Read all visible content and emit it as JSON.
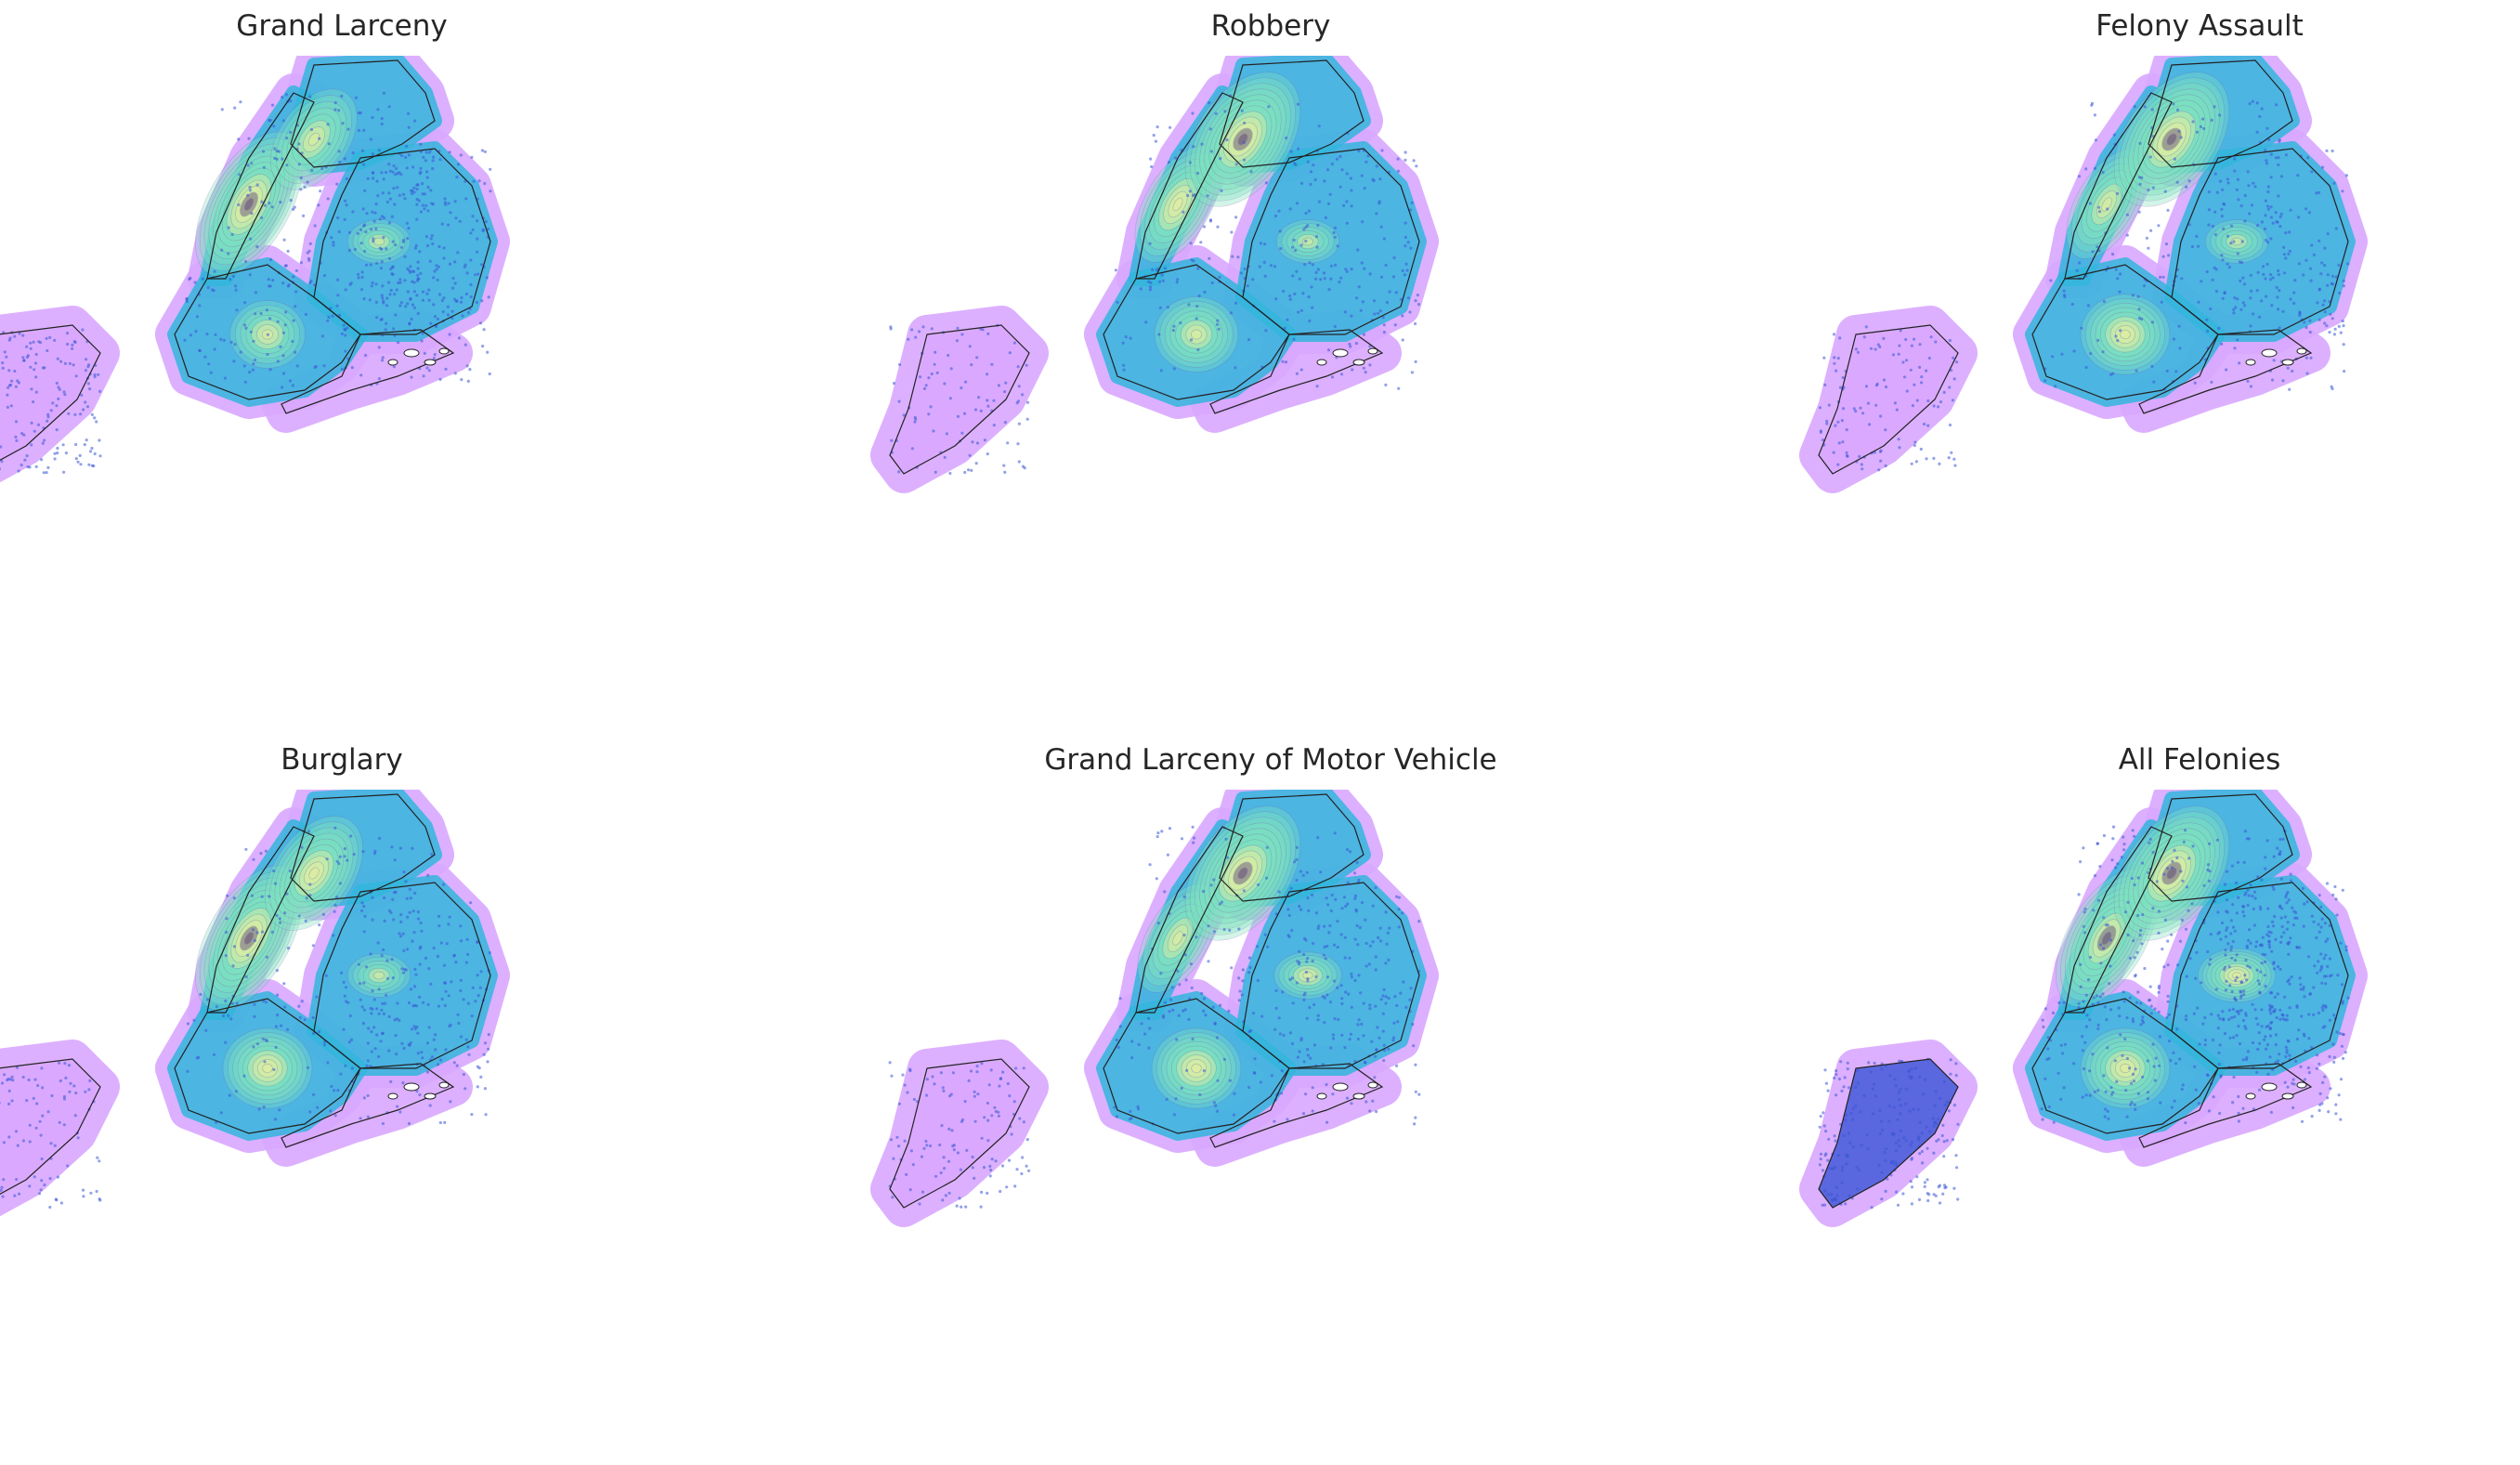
{
  "figure": {
    "panels": [
      {
        "title": "Grand Larceny",
        "density": 0.85
      },
      {
        "title": "Robbery",
        "density": 0.45
      },
      {
        "title": "Felony Assault",
        "density": 0.55
      },
      {
        "title": "Burglary",
        "density": 0.55
      },
      {
        "title": "Grand Larceny of Motor Vehicle",
        "density": 0.55
      },
      {
        "title": "All Felonies",
        "density": 1.0
      }
    ]
  },
  "colors": {
    "halo": "#d9a8ff",
    "kde_outer": "#33b6dd",
    "kde_mid": "#7fe3c0",
    "kde_inner": "#e7f0a0",
    "kde_peak": "#5a3e78",
    "points": "#3a55d6",
    "boundary": "#222222",
    "title": "#262626"
  }
}
